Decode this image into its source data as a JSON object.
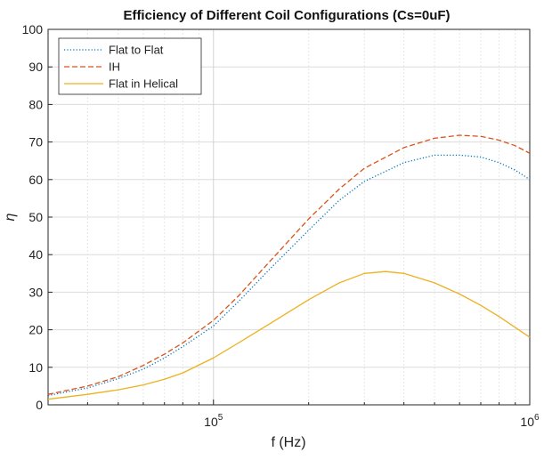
{
  "chart_data": {
    "type": "line",
    "title": "Efficiency of Different Coil Configurations (Cs=0uF)",
    "xlabel": "f (Hz)",
    "ylabel": "η",
    "xscale": "log",
    "xlim": [
      30000,
      1000000
    ],
    "ylim": [
      0,
      100
    ],
    "grid": true,
    "legend_position": "top-left",
    "yticks": [
      0,
      10,
      20,
      30,
      40,
      50,
      60,
      70,
      80,
      90,
      100
    ],
    "xticks": [
      {
        "value": 100000,
        "base": "10",
        "exp": "5"
      },
      {
        "value": 1000000,
        "base": "10",
        "exp": "6"
      }
    ],
    "series": [
      {
        "name": "Flat to Flat",
        "color": "#0072BD",
        "style": "dotted",
        "x": [
          30000,
          40000,
          50000,
          60000,
          70000,
          80000,
          100000,
          120000,
          150000,
          200000,
          250000,
          300000,
          400000,
          500000,
          600000,
          700000,
          800000,
          900000,
          1000000
        ],
        "y": [
          2.5,
          4.5,
          7,
          9.5,
          12.5,
          15.5,
          21,
          27.5,
          36,
          46.5,
          54.5,
          59.5,
          64.5,
          66.5,
          66.5,
          66,
          64.5,
          62.5,
          60
        ]
      },
      {
        "name": "IH",
        "color": "#D95319",
        "style": "dashed",
        "x": [
          30000,
          40000,
          50000,
          60000,
          70000,
          80000,
          100000,
          120000,
          150000,
          200000,
          250000,
          300000,
          400000,
          500000,
          600000,
          700000,
          800000,
          900000,
          1000000
        ],
        "y": [
          2.8,
          5,
          7.5,
          10.5,
          13.5,
          16.5,
          22.5,
          29,
          38,
          49.5,
          57.5,
          63,
          68.5,
          71,
          71.8,
          71.5,
          70.5,
          69,
          67
        ]
      },
      {
        "name": "Flat in Helical",
        "color": "#EDB120",
        "style": "solid",
        "x": [
          30000,
          40000,
          50000,
          60000,
          70000,
          80000,
          100000,
          120000,
          150000,
          200000,
          250000,
          300000,
          350000,
          400000,
          500000,
          600000,
          700000,
          800000,
          1000000
        ],
        "y": [
          1.5,
          2.8,
          4,
          5.3,
          6.8,
          8.5,
          12.5,
          16.5,
          21.5,
          28,
          32.5,
          35,
          35.5,
          35,
          32.5,
          29.5,
          26.5,
          23.5,
          18
        ]
      }
    ]
  }
}
